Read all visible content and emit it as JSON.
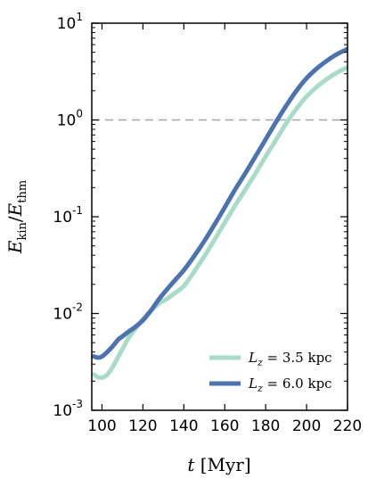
{
  "chart_data": {
    "type": "line",
    "xlabel": "t [Myr]",
    "ylabel": "E_kin/E_thm",
    "xlim": [
      95,
      220
    ],
    "ylim": [
      0.001,
      10
    ],
    "yscale": "log",
    "grid": false,
    "legend_placement": "bottom-right",
    "x_ticks": [
      "100",
      "120",
      "140",
      "160",
      "180",
      "200",
      "220"
    ],
    "x_tick_values": [
      100,
      120,
      140,
      160,
      180,
      200,
      220
    ],
    "y_ticks": [
      {
        "value": 0.001,
        "base": "10",
        "exp": "-3"
      },
      {
        "value": 0.01,
        "base": "10",
        "exp": "-2"
      },
      {
        "value": 0.1,
        "base": "10",
        "exp": "-1"
      },
      {
        "value": 1,
        "base": "10",
        "exp": "0"
      },
      {
        "value": 10,
        "base": "10",
        "exp": "1"
      }
    ],
    "reference_line": {
      "y": 1.0,
      "color": "#a6a6a6",
      "style": "dashed"
    },
    "series": [
      {
        "name": "L_z = 3.5 kpc",
        "legend_label": "Lz = 3.5 kpc",
        "color": "#a8dcc8",
        "x": [
          96,
          98,
          100,
          102,
          104,
          106,
          108,
          110,
          113,
          116,
          120,
          124,
          128,
          132,
          136,
          140,
          145,
          150,
          155,
          160,
          165,
          170,
          175,
          180,
          185,
          190,
          195,
          200,
          205,
          210,
          215,
          220
        ],
        "y": [
          0.00235,
          0.0022,
          0.00218,
          0.00228,
          0.00255,
          0.003,
          0.0036,
          0.0043,
          0.0056,
          0.0068,
          0.0087,
          0.0108,
          0.0127,
          0.0143,
          0.0165,
          0.0192,
          0.027,
          0.039,
          0.058,
          0.087,
          0.13,
          0.19,
          0.28,
          0.42,
          0.62,
          0.92,
          1.3,
          1.75,
          2.2,
          2.65,
          3.1,
          3.5
        ]
      },
      {
        "name": "L_z = 6.0 kpc",
        "legend_label": "Lz = 6.0 kpc",
        "color": "#4c72b0",
        "x": [
          96,
          98,
          100,
          102,
          104,
          106,
          108,
          110,
          113,
          116,
          120,
          124,
          128,
          132,
          136,
          140,
          145,
          150,
          155,
          160,
          165,
          170,
          175,
          180,
          185,
          190,
          195,
          200,
          205,
          210,
          215,
          220
        ],
        "y": [
          0.0036,
          0.0035,
          0.0036,
          0.0039,
          0.0043,
          0.0048,
          0.0054,
          0.0058,
          0.0065,
          0.0072,
          0.0085,
          0.0108,
          0.0142,
          0.018,
          0.0225,
          0.028,
          0.039,
          0.056,
          0.083,
          0.125,
          0.19,
          0.28,
          0.42,
          0.63,
          0.95,
          1.4,
          2.0,
          2.7,
          3.4,
          4.1,
          4.8,
          5.4
        ]
      }
    ]
  }
}
